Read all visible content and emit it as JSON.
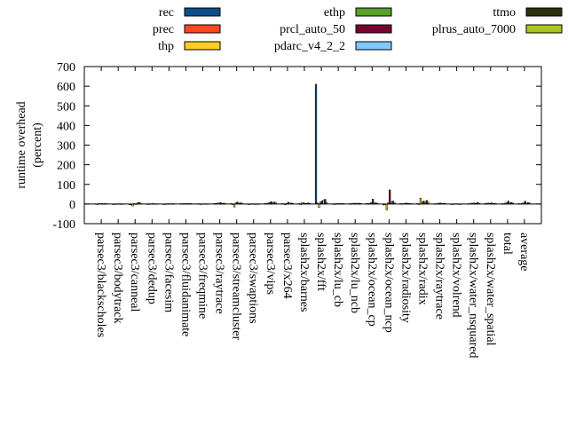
{
  "chart_data": {
    "type": "bar",
    "title": "",
    "xlabel": "",
    "ylabel": "runtime overhead (percent)",
    "ylabel_lines": [
      "runtime overhead",
      "(percent)"
    ],
    "ylim": [
      -100,
      700
    ],
    "yticks": [
      -100,
      0,
      100,
      200,
      300,
      400,
      500,
      600,
      700
    ],
    "legend_position": "top",
    "categories": [
      "parsec3/blackscholes",
      "parsec3/bodytrack",
      "parsec3/canneal",
      "parsec3/dedup",
      "parsec3/facesim",
      "parsec3/fluidanimate",
      "parsec3/freqmine",
      "parsec3/raytrace",
      "parsec3/streamcluster",
      "parsec3/swaptions",
      "parsec3/vips",
      "parsec3/x264",
      "splash2x/barnes",
      "splash2x/fft",
      "splash2x/lu_cb",
      "splash2x/lu_ncb",
      "splash2x/ocean_cp",
      "splash2x/ocean_ncp",
      "splash2x/radiosity",
      "splash2x/radix",
      "splash2x/raytrace",
      "splash2x/volrend",
      "splash2x/water_nsquared",
      "splash2x/water_spatial",
      "total",
      "average"
    ],
    "series": [
      {
        "name": "rec",
        "color": "#0b4f8a",
        "values": [
          1,
          0,
          -4,
          1,
          -1,
          2,
          1,
          3,
          2,
          0,
          3,
          2,
          2,
          610,
          1,
          2,
          3,
          -5,
          2,
          3,
          1,
          0,
          2,
          3,
          2,
          2
        ]
      },
      {
        "name": "prec",
        "color": "#ff4820",
        "values": [
          0,
          0,
          -5,
          0,
          -1,
          1,
          1,
          2,
          -3,
          0,
          2,
          1,
          -3,
          5,
          0,
          1,
          2,
          -2,
          1,
          -2,
          1,
          0,
          1,
          2,
          1,
          1
        ]
      },
      {
        "name": "thp",
        "color": "#ffcc20",
        "values": [
          2,
          1,
          -10,
          1,
          1,
          2,
          0,
          5,
          -15,
          1,
          5,
          -4,
          8,
          -18,
          2,
          4,
          3,
          -30,
          2,
          30,
          3,
          1,
          4,
          5,
          5,
          4
        ]
      },
      {
        "name": "ethp",
        "color": "#58a028",
        "values": [
          1,
          1,
          2,
          1,
          2,
          1,
          1,
          4,
          5,
          1,
          8,
          3,
          5,
          10,
          2,
          3,
          8,
          6,
          3,
          10,
          4,
          1,
          4,
          3,
          6,
          5
        ]
      },
      {
        "name": "prcl_auto_50",
        "color": "#7a0030",
        "values": [
          3,
          1,
          -2,
          2,
          1,
          3,
          1,
          8,
          10,
          1,
          12,
          9,
          4,
          15,
          3,
          4,
          25,
          72,
          5,
          15,
          5,
          1,
          5,
          6,
          15,
          14
        ]
      },
      {
        "name": "pdarc_v4_2_2",
        "color": "#80c8ff",
        "values": [
          1,
          0,
          5,
          1,
          1,
          2,
          1,
          3,
          4,
          0,
          6,
          4,
          3,
          20,
          1,
          2,
          5,
          10,
          2,
          8,
          2,
          0,
          3,
          2,
          5,
          4
        ]
      },
      {
        "name": "ttmo",
        "color": "#2e3010",
        "values": [
          2,
          1,
          8,
          1,
          2,
          2,
          1,
          4,
          6,
          1,
          10,
          5,
          5,
          24,
          2,
          4,
          6,
          15,
          3,
          18,
          3,
          1,
          8,
          3,
          8,
          7
        ]
      },
      {
        "name": "plrus_auto_7000",
        "color": "#a8c820",
        "values": [
          2,
          1,
          6,
          1,
          1,
          2,
          1,
          3,
          4,
          1,
          6,
          3,
          3,
          8,
          2,
          3,
          4,
          8,
          2,
          10,
          3,
          1,
          4,
          2,
          5,
          4
        ]
      }
    ]
  }
}
